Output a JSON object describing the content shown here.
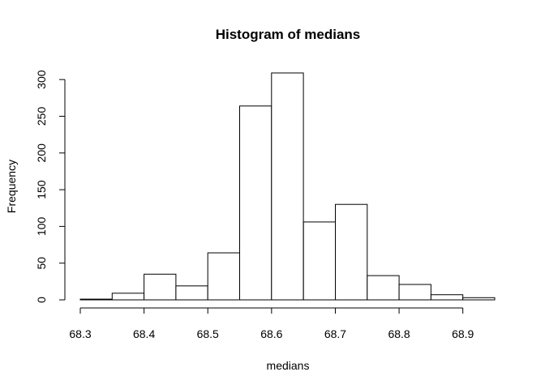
{
  "chart_data": {
    "type": "bar",
    "title": "Histogram of medians",
    "xlabel": "medians",
    "ylabel": "Frequency",
    "bin_edges": [
      68.3,
      68.35,
      68.4,
      68.45,
      68.5,
      68.55,
      68.6,
      68.65,
      68.7,
      68.75,
      68.8,
      68.85,
      68.9,
      68.95
    ],
    "values": [
      1,
      9,
      35,
      19,
      64,
      264,
      309,
      106,
      130,
      33,
      21,
      7,
      3
    ],
    "xlim": [
      68.3,
      68.95
    ],
    "ylim": [
      0,
      309
    ],
    "x_ticks": [
      "68.3",
      "68.4",
      "68.5",
      "68.6",
      "68.7",
      "68.8",
      "68.9"
    ],
    "y_ticks": [
      "0",
      "50",
      "100",
      "150",
      "200",
      "250",
      "300"
    ],
    "grid": false,
    "colors": {
      "bar_fill": "#ffffff",
      "bar_stroke": "#000000"
    }
  }
}
